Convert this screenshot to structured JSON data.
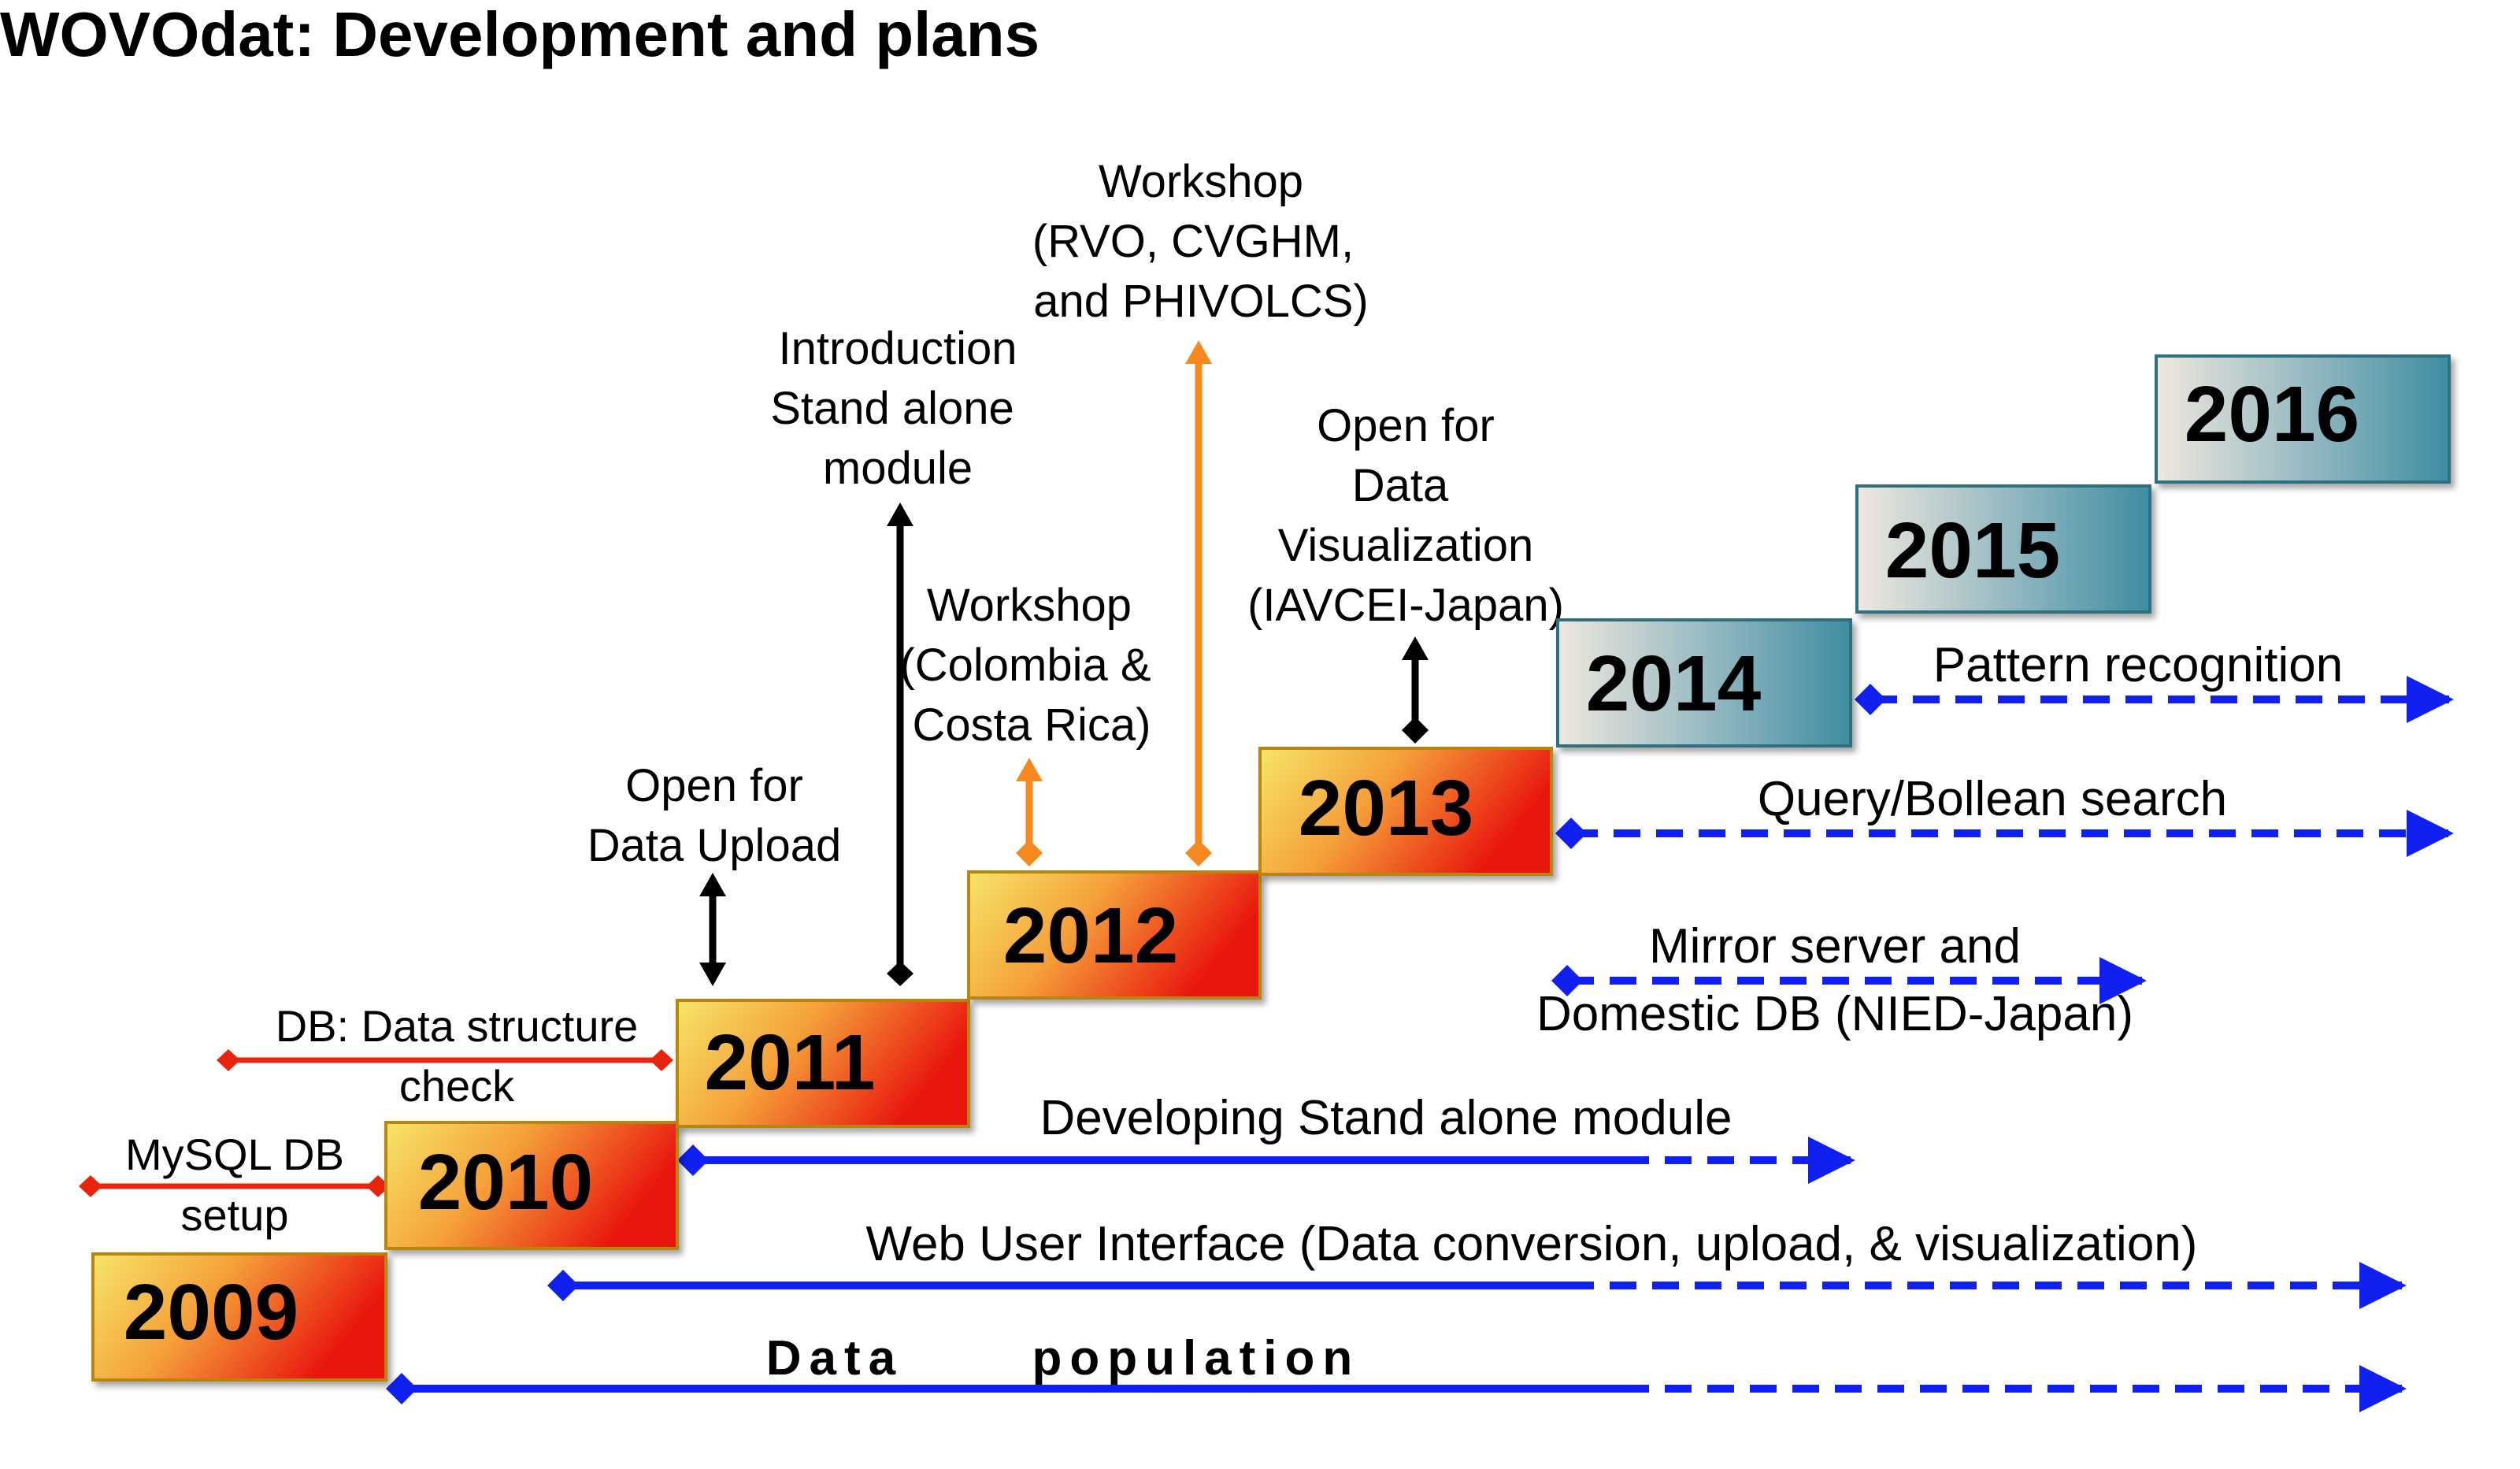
{
  "title": "WOVOdat: Development and plans",
  "years": [
    "2009",
    "2010",
    "2011",
    "2012",
    "2013",
    "2014",
    "2015",
    "2016"
  ],
  "milestones": {
    "mysql_setup": [
      "MySQL DB",
      "setup"
    ],
    "db_structure": [
      "DB: Data structure",
      "check"
    ],
    "open_upload": [
      "Open for",
      "Data Upload"
    ],
    "intro_module": [
      "Introduction",
      "Stand alone",
      "module"
    ],
    "workshop_colombia": [
      "Workshop",
      "(Colombia &",
      "Costa Rica)"
    ],
    "workshop_asia": [
      "Workshop",
      "(RVO, CVGHM,",
      "and PHIVOLCS)"
    ],
    "open_visualization": [
      "Open for",
      "Data",
      "Visualization",
      "(IAVCEI-Japan)"
    ]
  },
  "tracks": {
    "pattern": "Pattern recognition",
    "query": "Query/Bollean search",
    "mirror": [
      "Mirror server and",
      "Domestic DB (NIED-Japan)"
    ],
    "standalone": "Developing Stand alone module",
    "webui": "Web User Interface (Data conversion, upload, & visualization)",
    "population": "Data      population"
  },
  "colors": {
    "early_box_start": "#f6e56a",
    "early_box_mid": "#f5a13a",
    "early_box_end": "#e8120c",
    "late_box_start": "#efe8de",
    "late_box_end": "#3e8da1",
    "red_line": "#e8240e",
    "blue_line": "#1020f0",
    "orange_arrow": "#f5891f",
    "black_arrow": "#000000"
  }
}
